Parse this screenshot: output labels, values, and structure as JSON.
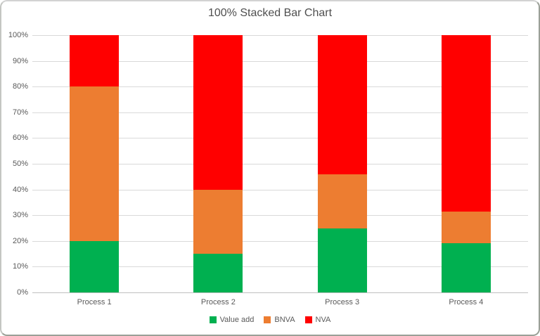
{
  "chart": {
    "title": "100% Stacked Bar Chart"
  },
  "chart_data": {
    "type": "bar",
    "subtype": "100%-stacked-column",
    "title": "100% Stacked Bar Chart",
    "categories": [
      "Process 1",
      "Process 2",
      "Process 3",
      "Process 4"
    ],
    "series": [
      {
        "name": "Value add",
        "color": "#00B050",
        "values": [
          20,
          15,
          25,
          19
        ]
      },
      {
        "name": "BNVA",
        "color": "#ED7D31",
        "values": [
          60,
          25,
          21,
          12.5
        ]
      },
      {
        "name": "NVA",
        "color": "#FF0000",
        "values": [
          20,
          60,
          54,
          68.5
        ]
      }
    ],
    "xlabel": "",
    "ylabel": "",
    "ylim": [
      0,
      100
    ],
    "y_ticks": [
      "0%",
      "10%",
      "20%",
      "30%",
      "40%",
      "50%",
      "60%",
      "70%",
      "80%",
      "90%",
      "100%"
    ],
    "grid": true,
    "legend_position": "bottom"
  },
  "colors": {
    "background": "#FFFFFF",
    "gridline": "#D9D9D9",
    "axis_line": "#BFBFBF",
    "label_text": "#595959",
    "title_text": "#4F4F4F"
  }
}
